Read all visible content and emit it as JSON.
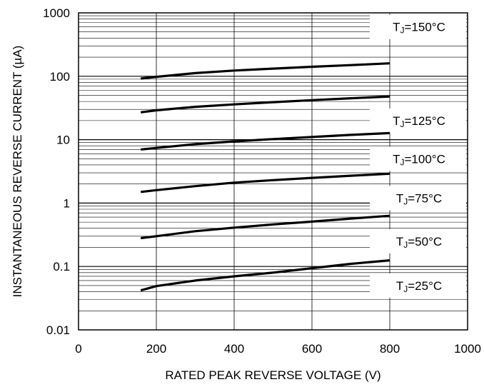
{
  "chart_data": {
    "type": "line",
    "xlabel": "RATED PEAK REVERSE VOLTAGE (V)",
    "ylabel": "INSTANTANEOUS REVERSE CURRENT (µA)",
    "xlim": [
      0,
      1000
    ],
    "ylim": [
      0.01,
      1000
    ],
    "yscale": "log",
    "grid": true,
    "x_ticks": [
      0,
      200,
      400,
      600,
      800,
      1000
    ],
    "x_tick_labels": [
      "0",
      "200",
      "400",
      "600",
      "800",
      "1000"
    ],
    "y_ticks": [
      0.01,
      0.1,
      1,
      10,
      100,
      1000
    ],
    "y_tick_labels": [
      "0.01",
      "0.1",
      "1",
      "10",
      "100",
      "1000"
    ],
    "series": [
      {
        "name_main": "T",
        "name_sub": "J",
        "name_rest": "=150°C",
        "label_y": 600,
        "x": [
          160,
          200,
          300,
          400,
          500,
          600,
          700,
          800
        ],
        "values": [
          92,
          98,
          112,
          123,
          132,
          141,
          150,
          160
        ]
      },
      {
        "name_main": "T",
        "name_sub": "J",
        "name_rest": "=125°C",
        "label_y": 20,
        "x": [
          160,
          200,
          300,
          400,
          500,
          600,
          700,
          800
        ],
        "values": [
          27,
          29,
          33,
          36,
          39,
          42,
          45,
          48
        ]
      },
      {
        "name_main": "T",
        "name_sub": "J",
        "name_rest": "=100°C",
        "label_y": 5,
        "x": [
          160,
          200,
          300,
          400,
          500,
          600,
          700,
          800
        ],
        "values": [
          7,
          7.4,
          8.5,
          9.4,
          10.2,
          11,
          11.9,
          12.7
        ]
      },
      {
        "name_main": "T",
        "name_sub": "J",
        "name_rest": "=75°C",
        "label_y": 1.2,
        "x": [
          160,
          200,
          300,
          400,
          500,
          600,
          700,
          800
        ],
        "values": [
          1.5,
          1.6,
          1.85,
          2.1,
          2.3,
          2.5,
          2.7,
          2.9
        ]
      },
      {
        "name_main": "T",
        "name_sub": "J",
        "name_rest": "=50°C",
        "label_y": 0.25,
        "x": [
          160,
          200,
          300,
          400,
          500,
          600,
          700,
          800
        ],
        "values": [
          0.28,
          0.3,
          0.36,
          0.41,
          0.46,
          0.51,
          0.57,
          0.63
        ]
      },
      {
        "name_main": "T",
        "name_sub": "J",
        "name_rest": "=25°C",
        "label_y": 0.05,
        "x": [
          160,
          200,
          300,
          400,
          500,
          600,
          700,
          800
        ],
        "values": [
          0.042,
          0.049,
          0.06,
          0.07,
          0.08,
          0.094,
          0.11,
          0.125
        ]
      }
    ]
  }
}
